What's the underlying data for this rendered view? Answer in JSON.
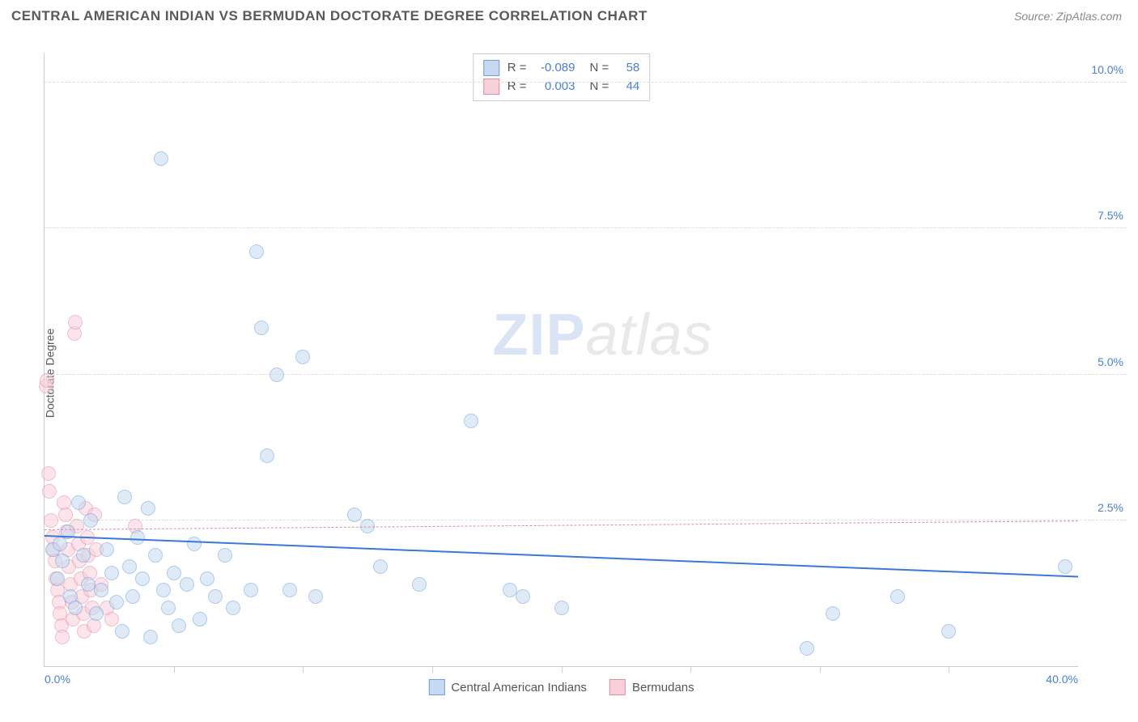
{
  "title": "CENTRAL AMERICAN INDIAN VS BERMUDAN DOCTORATE DEGREE CORRELATION CHART",
  "source": "Source: ZipAtlas.com",
  "ylabel": "Doctorate Degree",
  "watermark_zip": "ZIP",
  "watermark_atlas": "atlas",
  "chart": {
    "type": "scatter",
    "background_color": "#ffffff",
    "grid_color": "#dddddd",
    "axis_color": "#cccccc",
    "tick_label_color": "#4a7fd4",
    "xlim": [
      0,
      40
    ],
    "ylim": [
      0,
      10.5
    ],
    "yticks": [
      {
        "v": 2.5,
        "label": "2.5%"
      },
      {
        "v": 5.0,
        "label": "5.0%"
      },
      {
        "v": 7.5,
        "label": "7.5%"
      },
      {
        "v": 10.0,
        "label": "10.0%"
      }
    ],
    "xticks": [
      {
        "v": 0,
        "label": "0.0%",
        "pos": "first"
      },
      {
        "v": 5,
        "label": ""
      },
      {
        "v": 10,
        "label": ""
      },
      {
        "v": 15,
        "label": ""
      },
      {
        "v": 20,
        "label": ""
      },
      {
        "v": 25,
        "label": ""
      },
      {
        "v": 30,
        "label": ""
      },
      {
        "v": 35,
        "label": ""
      },
      {
        "v": 40,
        "label": "40.0%",
        "pos": "last"
      }
    ],
    "series": [
      {
        "name": "Central American Indians",
        "fill": "#c6d9f1",
        "stroke": "#6f9fe0",
        "marker_radius": 9,
        "fill_opacity": 0.55,
        "correlation": {
          "R": "-0.089",
          "N": "58"
        },
        "trend": {
          "style": "solid",
          "color": "#3b78d8",
          "y0": 2.25,
          "y1": 1.55
        },
        "points": [
          [
            0.3,
            2.0
          ],
          [
            0.5,
            1.5
          ],
          [
            0.6,
            2.1
          ],
          [
            0.7,
            1.8
          ],
          [
            0.9,
            2.3
          ],
          [
            1.0,
            1.2
          ],
          [
            1.2,
            1.0
          ],
          [
            1.3,
            2.8
          ],
          [
            1.5,
            1.9
          ],
          [
            1.7,
            1.4
          ],
          [
            1.8,
            2.5
          ],
          [
            2.0,
            0.9
          ],
          [
            2.2,
            1.3
          ],
          [
            2.4,
            2.0
          ],
          [
            2.6,
            1.6
          ],
          [
            2.8,
            1.1
          ],
          [
            3.0,
            0.6
          ],
          [
            3.1,
            2.9
          ],
          [
            3.3,
            1.7
          ],
          [
            3.4,
            1.2
          ],
          [
            3.6,
            2.2
          ],
          [
            3.8,
            1.5
          ],
          [
            4.0,
            2.7
          ],
          [
            4.1,
            0.5
          ],
          [
            4.3,
            1.9
          ],
          [
            4.5,
            8.7
          ],
          [
            4.6,
            1.3
          ],
          [
            4.8,
            1.0
          ],
          [
            5.0,
            1.6
          ],
          [
            5.2,
            0.7
          ],
          [
            5.5,
            1.4
          ],
          [
            5.8,
            2.1
          ],
          [
            6.0,
            0.8
          ],
          [
            6.3,
            1.5
          ],
          [
            6.6,
            1.2
          ],
          [
            7.0,
            1.9
          ],
          [
            7.3,
            1.0
          ],
          [
            8.0,
            1.3
          ],
          [
            8.2,
            7.1
          ],
          [
            8.4,
            5.8
          ],
          [
            8.6,
            3.6
          ],
          [
            9.0,
            5.0
          ],
          [
            9.5,
            1.3
          ],
          [
            10.0,
            5.3
          ],
          [
            10.5,
            1.2
          ],
          [
            12.0,
            2.6
          ],
          [
            12.5,
            2.4
          ],
          [
            13.0,
            1.7
          ],
          [
            14.5,
            1.4
          ],
          [
            16.5,
            4.2
          ],
          [
            18.0,
            1.3
          ],
          [
            18.5,
            1.2
          ],
          [
            20.0,
            1.0
          ],
          [
            29.5,
            0.3
          ],
          [
            30.5,
            0.9
          ],
          [
            33.0,
            1.2
          ],
          [
            35.0,
            0.6
          ],
          [
            39.5,
            1.7
          ]
        ]
      },
      {
        "name": "Bermudans",
        "fill": "#f8d0da",
        "stroke": "#e48aa2",
        "marker_radius": 9,
        "fill_opacity": 0.55,
        "correlation": {
          "R": "0.003",
          "N": "44"
        },
        "trend": {
          "style": "dashed",
          "color": "#e48aa2",
          "y0": 2.35,
          "y1": 2.5
        },
        "points": [
          [
            0.05,
            4.8
          ],
          [
            0.1,
            4.9
          ],
          [
            0.15,
            3.3
          ],
          [
            0.2,
            3.0
          ],
          [
            0.25,
            2.5
          ],
          [
            0.3,
            2.2
          ],
          [
            0.35,
            2.0
          ],
          [
            0.4,
            1.8
          ],
          [
            0.45,
            1.5
          ],
          [
            0.5,
            1.3
          ],
          [
            0.55,
            1.1
          ],
          [
            0.6,
            0.9
          ],
          [
            0.65,
            0.7
          ],
          [
            0.7,
            0.5
          ],
          [
            0.75,
            2.8
          ],
          [
            0.8,
            2.6
          ],
          [
            0.85,
            2.3
          ],
          [
            0.9,
            2.0
          ],
          [
            0.95,
            1.7
          ],
          [
            1.0,
            1.4
          ],
          [
            1.05,
            1.1
          ],
          [
            1.1,
            0.8
          ],
          [
            1.15,
            5.7
          ],
          [
            1.2,
            5.9
          ],
          [
            1.25,
            2.4
          ],
          [
            1.3,
            2.1
          ],
          [
            1.35,
            1.8
          ],
          [
            1.4,
            1.5
          ],
          [
            1.45,
            1.2
          ],
          [
            1.5,
            0.9
          ],
          [
            1.55,
            0.6
          ],
          [
            1.6,
            2.7
          ],
          [
            1.65,
            2.2
          ],
          [
            1.7,
            1.9
          ],
          [
            1.75,
            1.6
          ],
          [
            1.8,
            1.3
          ],
          [
            1.85,
            1.0
          ],
          [
            1.9,
            0.7
          ],
          [
            1.95,
            2.6
          ],
          [
            2.0,
            2.0
          ],
          [
            2.2,
            1.4
          ],
          [
            2.4,
            1.0
          ],
          [
            2.6,
            0.8
          ],
          [
            3.5,
            2.4
          ]
        ]
      }
    ],
    "corr_legend_labels": {
      "R": "R =",
      "N": "N ="
    }
  }
}
